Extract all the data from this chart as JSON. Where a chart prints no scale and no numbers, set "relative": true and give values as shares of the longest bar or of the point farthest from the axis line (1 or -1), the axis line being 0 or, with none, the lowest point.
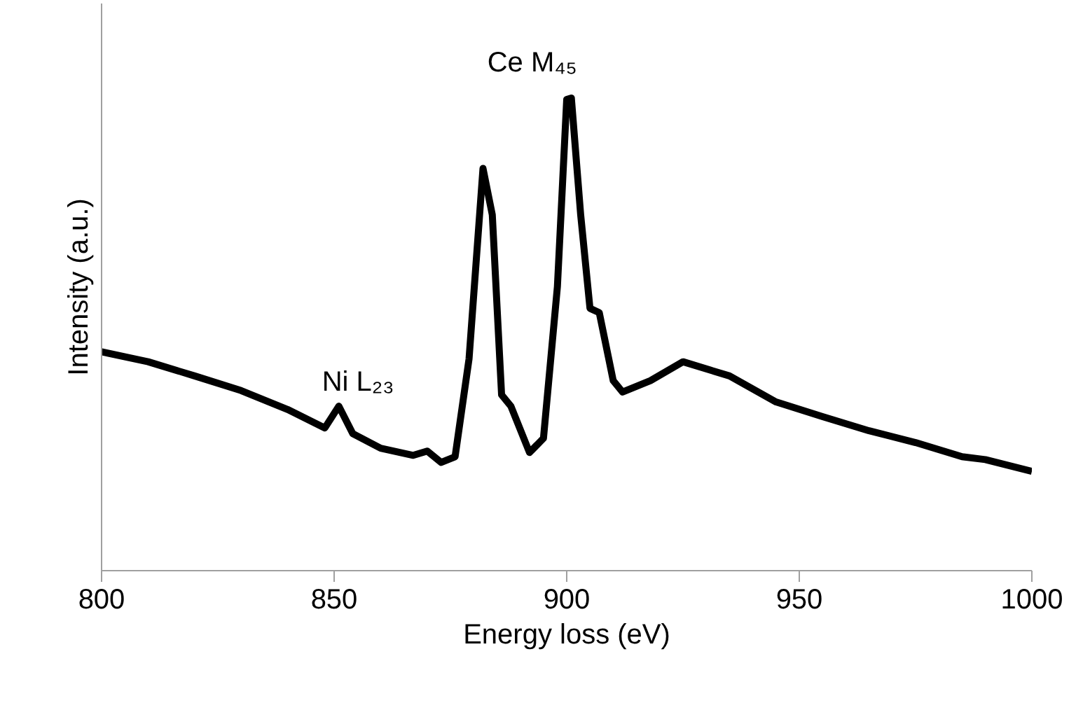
{
  "chart_data": {
    "type": "line",
    "relative": true,
    "xlabel": "Energy loss (eV)",
    "ylabel": "Intensity (a.u.)",
    "xlim": [
      800,
      1000
    ],
    "xticks": [
      800,
      850,
      900,
      950,
      1000
    ],
    "grid": false,
    "marker": "none",
    "line_style": "solid",
    "annotations": [
      {
        "text": "Ni L₂₃",
        "x": 851,
        "y": 0.348
      },
      {
        "text": "Ce M₄₅",
        "x": 901,
        "y": 1.0
      }
    ],
    "series": [
      {
        "color": "#000000",
        "x": [
          800,
          810,
          820,
          830,
          840,
          848,
          851,
          854,
          860,
          867,
          870,
          873,
          876,
          879,
          882,
          884,
          886,
          888,
          892,
          895,
          898,
          900,
          901,
          903,
          905,
          907,
          910,
          912,
          918,
          925,
          935,
          945,
          955,
          965,
          975,
          985,
          990,
          1000
        ],
        "values": [
          0.463,
          0.442,
          0.412,
          0.381,
          0.341,
          0.302,
          0.348,
          0.29,
          0.259,
          0.244,
          0.253,
          0.229,
          0.241,
          0.448,
          0.851,
          0.753,
          0.372,
          0.348,
          0.25,
          0.28,
          0.601,
          0.997,
          1.0,
          0.753,
          0.555,
          0.546,
          0.402,
          0.378,
          0.402,
          0.442,
          0.412,
          0.357,
          0.326,
          0.296,
          0.271,
          0.241,
          0.235,
          0.21
        ]
      }
    ]
  }
}
